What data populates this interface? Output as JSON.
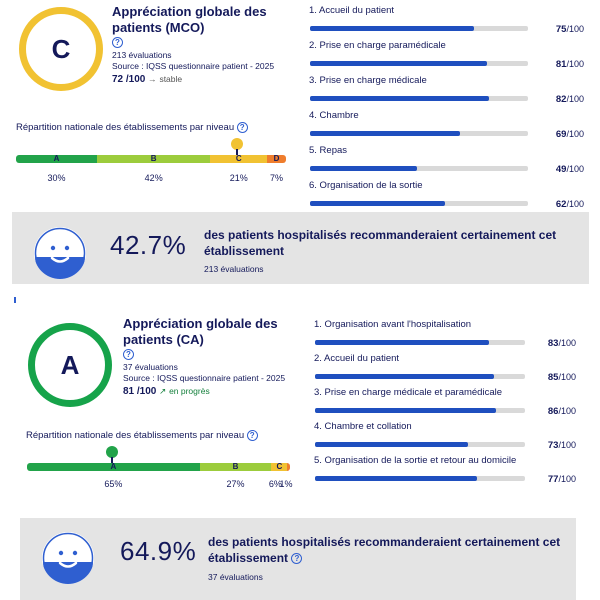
{
  "cards": [
    {
      "grade": "C",
      "grade_color": "#f1c232",
      "title": "Appréciation globale des patients (MCO)",
      "help_icon": "help-circle-icon",
      "evaluations": "213 évaluations",
      "source": "Source : IQSS questionnaire patient - 2025",
      "score": "72 /100",
      "trend_icon": "arrow-right-icon",
      "trend_arrow": "→",
      "trend": "stable",
      "distribution_label": "Répartition nationale des établissements par niveau",
      "distribution": [
        {
          "letter": "A",
          "percent": "30%",
          "share": 30,
          "color": "#22a34a"
        },
        {
          "letter": "B",
          "percent": "42%",
          "share": 42,
          "color": "#9ccc3c"
        },
        {
          "letter": "C",
          "percent": "21%",
          "share": 21,
          "color": "#f1c232"
        },
        {
          "letter": "D",
          "percent": "7%",
          "share": 7,
          "color": "#ef7d2d"
        }
      ],
      "indicators": [
        {
          "label": "1. Accueil du patient",
          "score": "75",
          "max": "/100",
          "value": 75
        },
        {
          "label": "2. Prise en charge paramédicale",
          "score": "81",
          "max": "/100",
          "value": 81
        },
        {
          "label": "3. Prise en charge médicale",
          "score": "82",
          "max": "/100",
          "value": 82
        },
        {
          "label": "4. Chambre",
          "score": "69",
          "max": "/100",
          "value": 69
        },
        {
          "label": "5. Repas",
          "score": "49",
          "max": "/100",
          "value": 49
        },
        {
          "label": "6. Organisation de la sortie",
          "score": "62",
          "max": "/100",
          "value": 62
        }
      ],
      "recommend_pct": "42.7%",
      "recommend_text": "des patients hospitalisés recommanderaient certainement cet établissement",
      "recommend_count": "213 évaluations",
      "smiley_icon": "smiley-face-icon"
    },
    {
      "grade": "A",
      "grade_color": "#16a34a",
      "title": "Appréciation globale des patients (CA)",
      "help_icon": "help-circle-icon",
      "evaluations": "37 évaluations",
      "source": "Source : IQSS questionnaire patient - 2025",
      "score": "81 /100",
      "trend_icon": "arrow-up-right-icon",
      "trend_arrow": "↗",
      "trend": "en progrès",
      "distribution_label": "Répartition nationale des établissements par niveau",
      "distribution": [
        {
          "letter": "A",
          "percent": "65%",
          "share": 65,
          "color": "#22a34a"
        },
        {
          "letter": "B",
          "percent": "27%",
          "share": 27,
          "color": "#9ccc3c"
        },
        {
          "letter": "C",
          "percent": "6%",
          "share": 6,
          "color": "#f1c232"
        },
        {
          "letter": "",
          "percent": "1%",
          "share": 1,
          "color": "#ef7d2d"
        }
      ],
      "indicators": [
        {
          "label": "1. Organisation avant l'hospitalisation",
          "score": "83",
          "max": "/100",
          "value": 83
        },
        {
          "label": "2. Accueil du patient",
          "score": "85",
          "max": "/100",
          "value": 85
        },
        {
          "label": "3. Prise en charge médicale et paramédicale",
          "score": "86",
          "max": "/100",
          "value": 86
        },
        {
          "label": "4. Chambre et collation",
          "score": "73",
          "max": "/100",
          "value": 73
        },
        {
          "label": "5. Organisation de la sortie et retour au domicile",
          "score": "77",
          "max": "/100",
          "value": 77
        }
      ],
      "recommend_pct": "64.9%",
      "recommend_text": "des patients hospitalisés recommanderaient certainement cet établissement",
      "recommend_count": "37 évaluations",
      "smiley_icon": "smiley-face-icon"
    }
  ]
}
